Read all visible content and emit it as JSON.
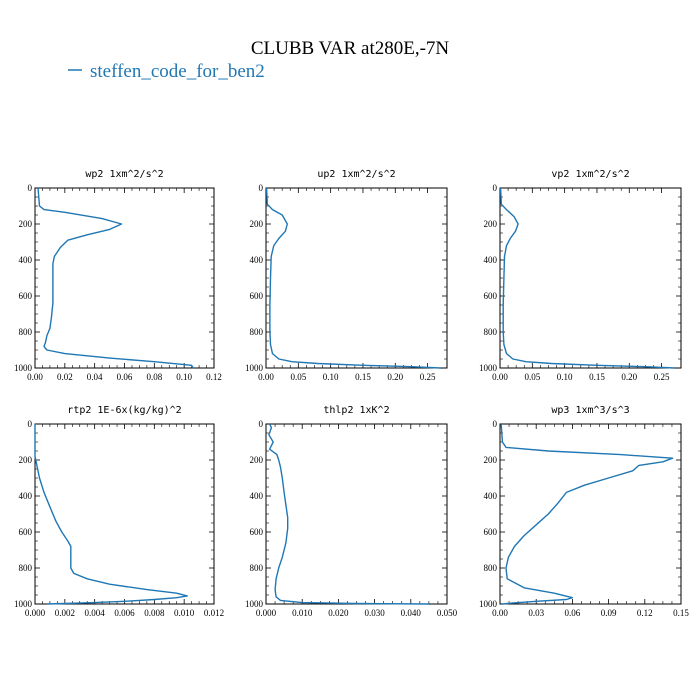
{
  "figure": {
    "title": "CLUBB VAR at280E,-7N",
    "legend_label": "steffen_code_for_ben2",
    "line_color": "#1f77b4"
  },
  "chart_data": [
    {
      "type": "line",
      "title": "wp2   1xm^2/s^2",
      "xlim": [
        0,
        0.12
      ],
      "xticks": [
        "0.00",
        "0.02",
        "0.04",
        "0.06",
        "0.08",
        "0.10",
        "0.12"
      ],
      "ylim": [
        1000,
        0
      ],
      "yticks": [
        "0",
        "200",
        "400",
        "600",
        "800",
        "1000"
      ],
      "series": [
        {
          "x": [
            0.002,
            0.003,
            0.006,
            0.02,
            0.045,
            0.058,
            0.05,
            0.035,
            0.022,
            0.017,
            0.013,
            0.012,
            0.012,
            0.012,
            0.012,
            0.011,
            0.01,
            0.008,
            0.007,
            0.006,
            0.008,
            0.02,
            0.05,
            0.08,
            0.105,
            0.106
          ],
          "y": [
            0,
            100,
            120,
            135,
            170,
            200,
            230,
            260,
            290,
            330,
            380,
            420,
            480,
            560,
            640,
            720,
            780,
            820,
            860,
            880,
            900,
            920,
            945,
            965,
            985,
            1000
          ]
        }
      ]
    },
    {
      "type": "line",
      "title": "up2   1xm^2/s^2",
      "xlim": [
        0,
        0.28
      ],
      "xticks": [
        "0.00",
        "0.05",
        "0.10",
        "0.15",
        "0.20",
        "0.25"
      ],
      "ylim": [
        1000,
        0
      ],
      "yticks": [
        "0",
        "200",
        "400",
        "600",
        "800",
        "1000"
      ],
      "series": [
        {
          "x": [
            0.001,
            0.002,
            0.01,
            0.025,
            0.033,
            0.03,
            0.02,
            0.012,
            0.008,
            0.007,
            0.006,
            0.006,
            0.007,
            0.01,
            0.02,
            0.04,
            0.08,
            0.15,
            0.22,
            0.27
          ],
          "y": [
            0,
            90,
            120,
            150,
            200,
            240,
            280,
            320,
            380,
            500,
            650,
            800,
            870,
            920,
            950,
            965,
            975,
            985,
            992,
            1000
          ]
        }
      ]
    },
    {
      "type": "line",
      "title": "vp2   1xm^2/s^2",
      "xlim": [
        0,
        0.28
      ],
      "xticks": [
        "0.00",
        "0.05",
        "0.10",
        "0.15",
        "0.20",
        "0.25"
      ],
      "ylim": [
        1000,
        0
      ],
      "yticks": [
        "0",
        "200",
        "400",
        "600",
        "800",
        "1000"
      ],
      "series": [
        {
          "x": [
            0.001,
            0.002,
            0.01,
            0.022,
            0.028,
            0.024,
            0.016,
            0.01,
            0.007,
            0.006,
            0.005,
            0.005,
            0.006,
            0.01,
            0.02,
            0.04,
            0.08,
            0.15,
            0.22,
            0.27
          ],
          "y": [
            0,
            90,
            120,
            160,
            200,
            240,
            280,
            320,
            380,
            500,
            650,
            800,
            870,
            920,
            950,
            965,
            975,
            985,
            992,
            1000
          ]
        }
      ]
    },
    {
      "type": "line",
      "title": "rtp2   1E-6x(kg/kg)^2",
      "xlim": [
        0,
        0.012
      ],
      "xticks": [
        "0.000",
        "0.002",
        "0.004",
        "0.006",
        "0.008",
        "0.010",
        "0.012"
      ],
      "ylim": [
        1000,
        0
      ],
      "yticks": [
        "0",
        "200",
        "400",
        "600",
        "800",
        "1000"
      ],
      "series": [
        {
          "x": [
            0.0,
            0.0,
            0.0001,
            0.0003,
            0.0006,
            0.001,
            0.0014,
            0.0018,
            0.0022,
            0.0024,
            0.0024,
            0.0024,
            0.0026,
            0.0035,
            0.005,
            0.0075,
            0.0095,
            0.0102,
            0.0095,
            0.008,
            0.006,
            0.004,
            0.002,
            0.0008
          ],
          "y": [
            0,
            180,
            220,
            300,
            380,
            460,
            540,
            600,
            650,
            680,
            760,
            800,
            830,
            860,
            890,
            920,
            940,
            955,
            965,
            975,
            985,
            992,
            997,
            1000
          ]
        }
      ]
    },
    {
      "type": "line",
      "title": "thlp2   1xK^2",
      "xlim": [
        0,
        0.05
      ],
      "xticks": [
        "0.000",
        "0.010",
        "0.020",
        "0.030",
        "0.040",
        "0.050"
      ],
      "ylim": [
        1000,
        0
      ],
      "yticks": [
        "0",
        "200",
        "400",
        "600",
        "800",
        "1000"
      ],
      "series": [
        {
          "x": [
            0.001,
            0.0015,
            0.0008,
            0.002,
            0.001,
            0.003,
            0.0035,
            0.004,
            0.0045,
            0.005,
            0.0055,
            0.006,
            0.006,
            0.0055,
            0.0045,
            0.0035,
            0.0028,
            0.0025,
            0.0028,
            0.004,
            0.01,
            0.025,
            0.045
          ],
          "y": [
            0,
            20,
            60,
            100,
            140,
            170,
            200,
            240,
            300,
            380,
            450,
            520,
            580,
            660,
            740,
            800,
            860,
            920,
            960,
            980,
            992,
            997,
            1000
          ]
        }
      ]
    },
    {
      "type": "line",
      "title": "wp3   1xm^3/s^3",
      "xlim": [
        0,
        0.15
      ],
      "xticks": [
        "0.00",
        "0.03",
        "0.06",
        "0.09",
        "0.12",
        "0.15"
      ],
      "ylim": [
        1000,
        0
      ],
      "yticks": [
        "0",
        "200",
        "400",
        "600",
        "800",
        "1000"
      ],
      "series": [
        {
          "x": [
            0.001,
            0.002,
            0.005,
            0.04,
            0.1,
            0.143,
            0.135,
            0.115,
            0.11,
            0.09,
            0.07,
            0.055,
            0.048,
            0.04,
            0.03,
            0.02,
            0.012,
            0.007,
            0.005,
            0.006,
            0.02,
            0.045,
            0.06,
            0.055,
            0.03,
            0.01,
            0.002
          ],
          "y": [
            0,
            100,
            130,
            150,
            170,
            190,
            210,
            230,
            260,
            300,
            340,
            380,
            440,
            500,
            560,
            620,
            680,
            740,
            800,
            860,
            910,
            940,
            965,
            975,
            985,
            995,
            1000
          ]
        }
      ]
    }
  ]
}
